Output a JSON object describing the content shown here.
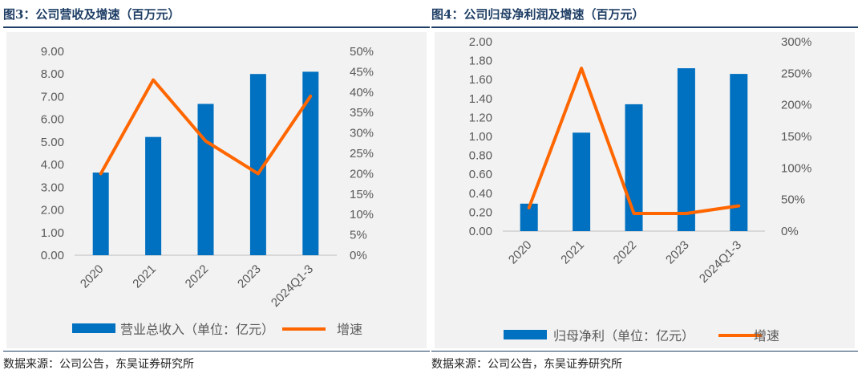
{
  "charts": [
    {
      "figure_title": "图3：公司营收及增速（百万元）",
      "source_note": "数据来源：公司公告，东吴证券研究所",
      "legend": {
        "bar_label": "营业总收入（单位：亿元）",
        "line_label": "增速"
      },
      "colors": {
        "bar": "#0070c0",
        "line": "#ff6600"
      }
    },
    {
      "figure_title": "图4：公司归母净利润及增速（百万元）",
      "source_note": "数据来源：公司公告，东吴证券研究所",
      "legend": {
        "bar_label": "归母净利（单位：亿元）",
        "line_label": "增速"
      },
      "colors": {
        "bar": "#0070c0",
        "line": "#ff6600"
      }
    }
  ],
  "chart_data": [
    {
      "type": "bar+line",
      "categories": [
        "2020",
        "2021",
        "2022",
        "2023",
        "2024Q1-3"
      ],
      "series": [
        {
          "name": "营业总收入（单位：亿元）",
          "type": "bar",
          "axis": "left",
          "values": [
            3.65,
            5.22,
            6.68,
            8.0,
            8.1
          ]
        },
        {
          "name": "增速",
          "type": "line",
          "axis": "right",
          "values": [
            20,
            43,
            28,
            20,
            39
          ],
          "unit": "%"
        }
      ],
      "y_left": {
        "min": 0,
        "max": 9,
        "step": 1,
        "tick_labels": [
          "0.00",
          "1.00",
          "2.00",
          "3.00",
          "4.00",
          "5.00",
          "6.00",
          "7.00",
          "8.00",
          "9.00"
        ]
      },
      "y_right": {
        "min": 0,
        "max": 50,
        "step": 5,
        "tick_labels": [
          "0%",
          "5%",
          "10%",
          "15%",
          "20%",
          "25%",
          "30%",
          "35%",
          "40%",
          "45%",
          "50%"
        ]
      },
      "grid": false,
      "legend_position": "bottom"
    },
    {
      "type": "bar+line",
      "categories": [
        "2020",
        "2021",
        "2022",
        "2023",
        "2024Q1-3"
      ],
      "series": [
        {
          "name": "归母净利（单位：亿元）",
          "type": "bar",
          "axis": "left",
          "values": [
            0.29,
            1.04,
            1.34,
            1.72,
            1.66
          ]
        },
        {
          "name": "增速",
          "type": "line",
          "axis": "right",
          "values": [
            37,
            258,
            28,
            28,
            40
          ],
          "unit": "%"
        }
      ],
      "y_left": {
        "min": 0,
        "max": 2,
        "step": 0.2,
        "tick_labels": [
          "0.00",
          "0.20",
          "0.40",
          "0.60",
          "0.80",
          "1.00",
          "1.20",
          "1.40",
          "1.60",
          "1.80",
          "2.00"
        ]
      },
      "y_right": {
        "min": 0,
        "max": 300,
        "step": 50,
        "tick_labels": [
          "0%",
          "50%",
          "100%",
          "150%",
          "200%",
          "250%",
          "300%"
        ]
      },
      "grid": false,
      "legend_position": "bottom"
    }
  ]
}
